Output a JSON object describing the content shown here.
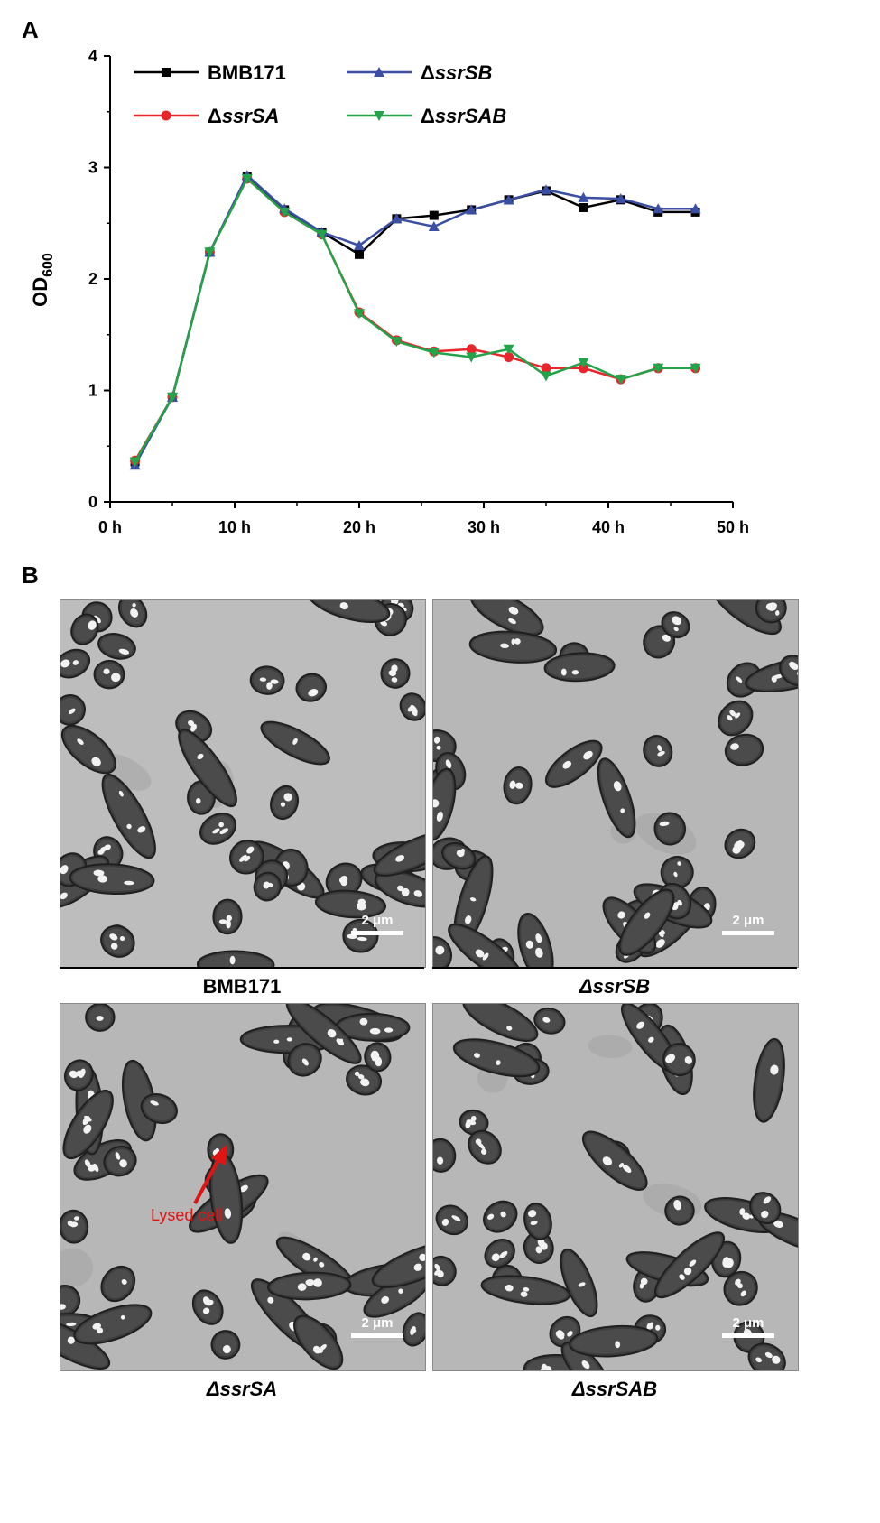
{
  "panel_a": {
    "label": "A"
  },
  "panel_b": {
    "label": "B"
  },
  "chart_data": {
    "type": "line",
    "title": "",
    "xlabel": "",
    "ylabel": "OD",
    "ylabel_subscript": "600",
    "xlim": [
      0,
      50
    ],
    "ylim": [
      0,
      4
    ],
    "x_ticks": [
      0,
      10,
      20,
      30,
      40,
      50
    ],
    "x_tick_labels": [
      "0 h",
      "10 h",
      "20 h",
      "30 h",
      "40 h",
      "50 h"
    ],
    "y_ticks": [
      0,
      1,
      2,
      3,
      4
    ],
    "y_tick_labels": [
      "0",
      "1",
      "2",
      "3",
      "4"
    ],
    "grid": false,
    "legend_position": "top-left",
    "x": [
      2,
      5,
      8,
      11,
      14,
      17,
      20,
      23,
      26,
      29,
      32,
      35,
      38,
      41,
      44,
      47
    ],
    "series": [
      {
        "name": "BMB171",
        "color": "#000000",
        "marker": "square",
        "values": [
          0.36,
          0.94,
          2.24,
          2.92,
          2.62,
          2.42,
          2.22,
          2.54,
          2.57,
          2.62,
          2.71,
          2.79,
          2.64,
          2.71,
          2.6,
          2.6
        ]
      },
      {
        "name": "ΔssrSA",
        "color": "#e8262b",
        "marker": "circle",
        "values": [
          0.37,
          0.94,
          2.24,
          2.9,
          2.6,
          2.4,
          1.7,
          1.45,
          1.35,
          1.37,
          1.3,
          1.2,
          1.2,
          1.1,
          1.2,
          1.2
        ]
      },
      {
        "name": "ΔssrSB",
        "color": "#3a4ea3",
        "marker": "triangle-up",
        "values": [
          0.33,
          0.94,
          2.24,
          2.93,
          2.63,
          2.42,
          2.3,
          2.54,
          2.47,
          2.62,
          2.71,
          2.8,
          2.73,
          2.72,
          2.63,
          2.63
        ]
      },
      {
        "name": "ΔssrSAB",
        "color": "#23a34a",
        "marker": "triangle-down",
        "values": [
          0.36,
          0.94,
          2.24,
          2.9,
          2.6,
          2.4,
          1.69,
          1.44,
          1.34,
          1.3,
          1.37,
          1.13,
          1.25,
          1.1,
          1.2,
          1.2
        ]
      }
    ]
  },
  "micrographs": [
    {
      "caption": "BMB171",
      "scale": "2 μm"
    },
    {
      "caption": "ΔssrSB",
      "scale": "2 μm"
    },
    {
      "caption": "ΔssrSA",
      "scale": "2 μm",
      "annotation": "Lysed cell"
    },
    {
      "caption": "ΔssrSAB",
      "scale": "2 μm"
    }
  ]
}
